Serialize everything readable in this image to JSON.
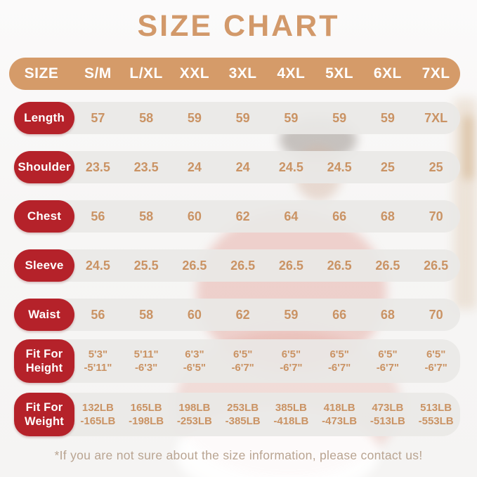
{
  "title": "SIZE CHART",
  "table": {
    "header": [
      "SIZE",
      "S/M",
      "L/XL",
      "XXL",
      "3XL",
      "4XL",
      "5XL",
      "6XL",
      "7XL"
    ],
    "rows": [
      {
        "label": "Length",
        "values": [
          "57",
          "58",
          "59",
          "59",
          "59",
          "59",
          "59",
          "7XL"
        ]
      },
      {
        "label": "Shoulder",
        "values": [
          "23.5",
          "23.5",
          "24",
          "24",
          "24.5",
          "24.5",
          "25",
          "25"
        ]
      },
      {
        "label": "Chest",
        "values": [
          "56",
          "58",
          "60",
          "62",
          "64",
          "66",
          "68",
          "70"
        ]
      },
      {
        "label": "Sleeve",
        "values": [
          "24.5",
          "25.5",
          "26.5",
          "26.5",
          "26.5",
          "26.5",
          "26.5",
          "26.5"
        ]
      },
      {
        "label": "Waist",
        "values": [
          "56",
          "58",
          "60",
          "62",
          "59",
          "66",
          "68",
          "70"
        ]
      },
      {
        "label": "Fit For Height",
        "label_lines": [
          "Fit For",
          "Height"
        ],
        "values": [
          [
            "5'3\"",
            "-5'11\""
          ],
          [
            "5'11\"",
            "-6'3\""
          ],
          [
            "6'3\"",
            "-6'5\""
          ],
          [
            "6'5\"",
            "-6'7\""
          ],
          [
            "6'5\"",
            "-6'7\""
          ],
          [
            "6'5\"",
            "-6'7\""
          ],
          [
            "6'5\"",
            "-6'7\""
          ],
          [
            "6'5\"",
            "-6'7\""
          ]
        ]
      },
      {
        "label": "Fit For Weight",
        "label_lines": [
          "Fit For",
          "Weight"
        ],
        "values": [
          [
            "132LB",
            "-165LB"
          ],
          [
            "165LB",
            "-198LB"
          ],
          [
            "198LB",
            "-253LB"
          ],
          [
            "253LB",
            "-385LB"
          ],
          [
            "385LB",
            "-418LB"
          ],
          [
            "418LB",
            "-473LB"
          ],
          [
            "473LB",
            "-513LB"
          ],
          [
            "513LB",
            "-553LB"
          ]
        ]
      }
    ]
  },
  "footer": "*If you are not sure about the size information, please contact us!",
  "colors": {
    "accent_tan": "#d2996a",
    "header_pill": "#d59b69",
    "label_red": "#b5222a",
    "row_band": "#e9e8e6",
    "value_text": "#ca9364",
    "footer_text": "#b9a491"
  }
}
